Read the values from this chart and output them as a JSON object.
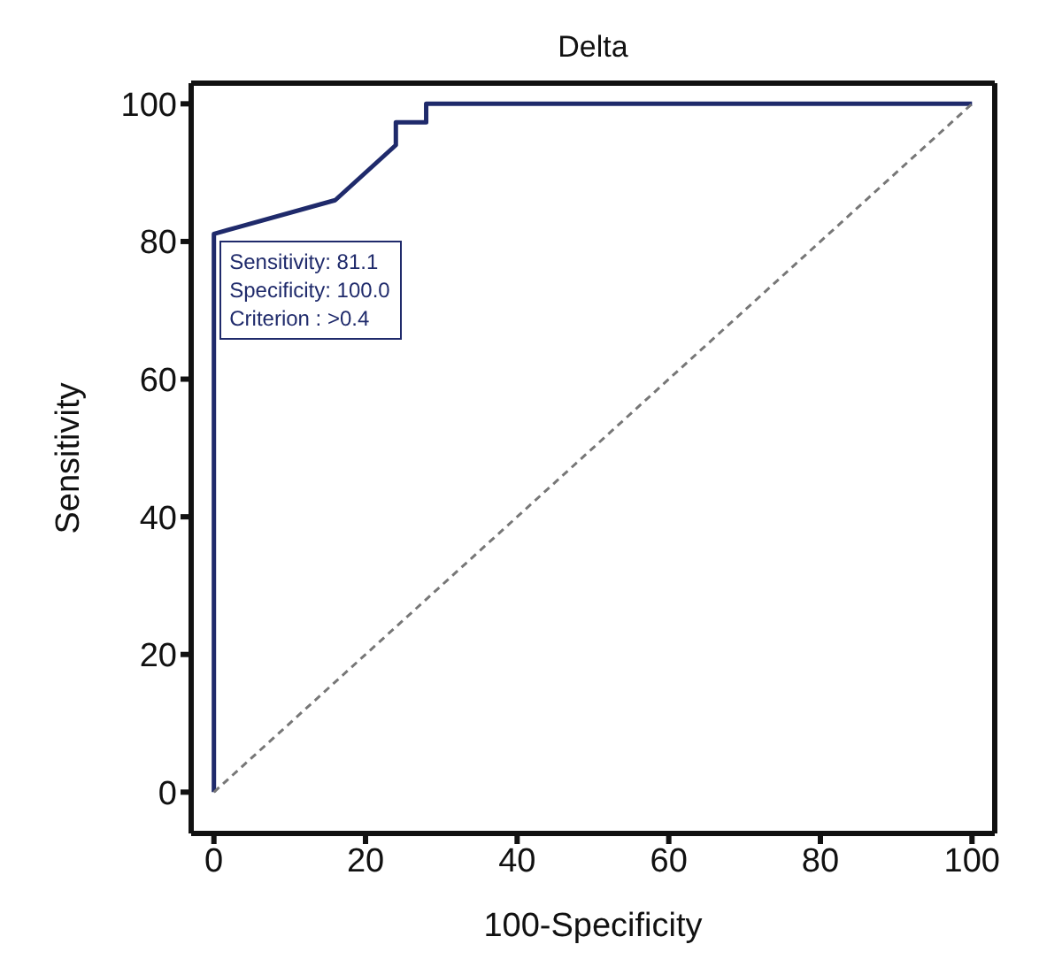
{
  "chart_data": {
    "type": "line",
    "title": "Delta",
    "xlabel": "100-Specificity",
    "ylabel": "Sensitivity",
    "series": [
      {
        "color": "#1f2a6b",
        "x": [
          0,
          0,
          16,
          24,
          24,
          28,
          28,
          100
        ],
        "values": [
          0,
          81.1,
          86,
          94,
          97.3,
          97.3,
          100,
          100
        ],
        "line_style": "solid"
      },
      {
        "color": "#777777",
        "x": [
          0,
          100
        ],
        "values": [
          0,
          100
        ],
        "line_style": "dashed"
      }
    ],
    "annotations": [
      "Sensitivity: 81.1",
      "Specificity: 100.0",
      "Criterion : >0.4"
    ],
    "xlim": [
      -3,
      103
    ],
    "ylim": [
      -6,
      103
    ],
    "xticks": [
      0,
      20,
      40,
      60,
      80,
      100
    ],
    "yticks": [
      0,
      20,
      40,
      60,
      80,
      100
    ],
    "legend": false,
    "marker": "none"
  }
}
